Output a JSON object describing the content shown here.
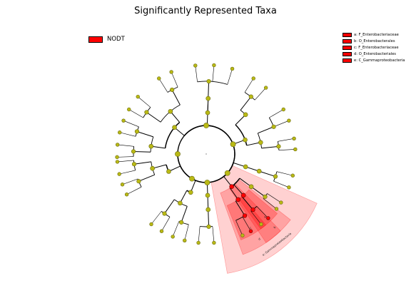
{
  "title": "Significantly Represented Taxa",
  "colors": {
    "enriched": "#ff0000",
    "nonsignificant": "#b9b915",
    "background": "#ffffff"
  },
  "legend": {
    "group_label": "NODT",
    "taxa": [
      {
        "label": "a: F_Enterobacteriaceae"
      },
      {
        "label": "b: O_Enterobacterales"
      },
      {
        "label": "c: F_Enterobacteriaceae"
      },
      {
        "label": "d: O_Enterobacteriales"
      },
      {
        "label": "e: C_Gammaproteobacteria"
      }
    ]
  },
  "clade_labels": {
    "e": "e: Gammaproteobacteria",
    "d": "d",
    "c": "c",
    "b": "b",
    "a": "a"
  }
}
